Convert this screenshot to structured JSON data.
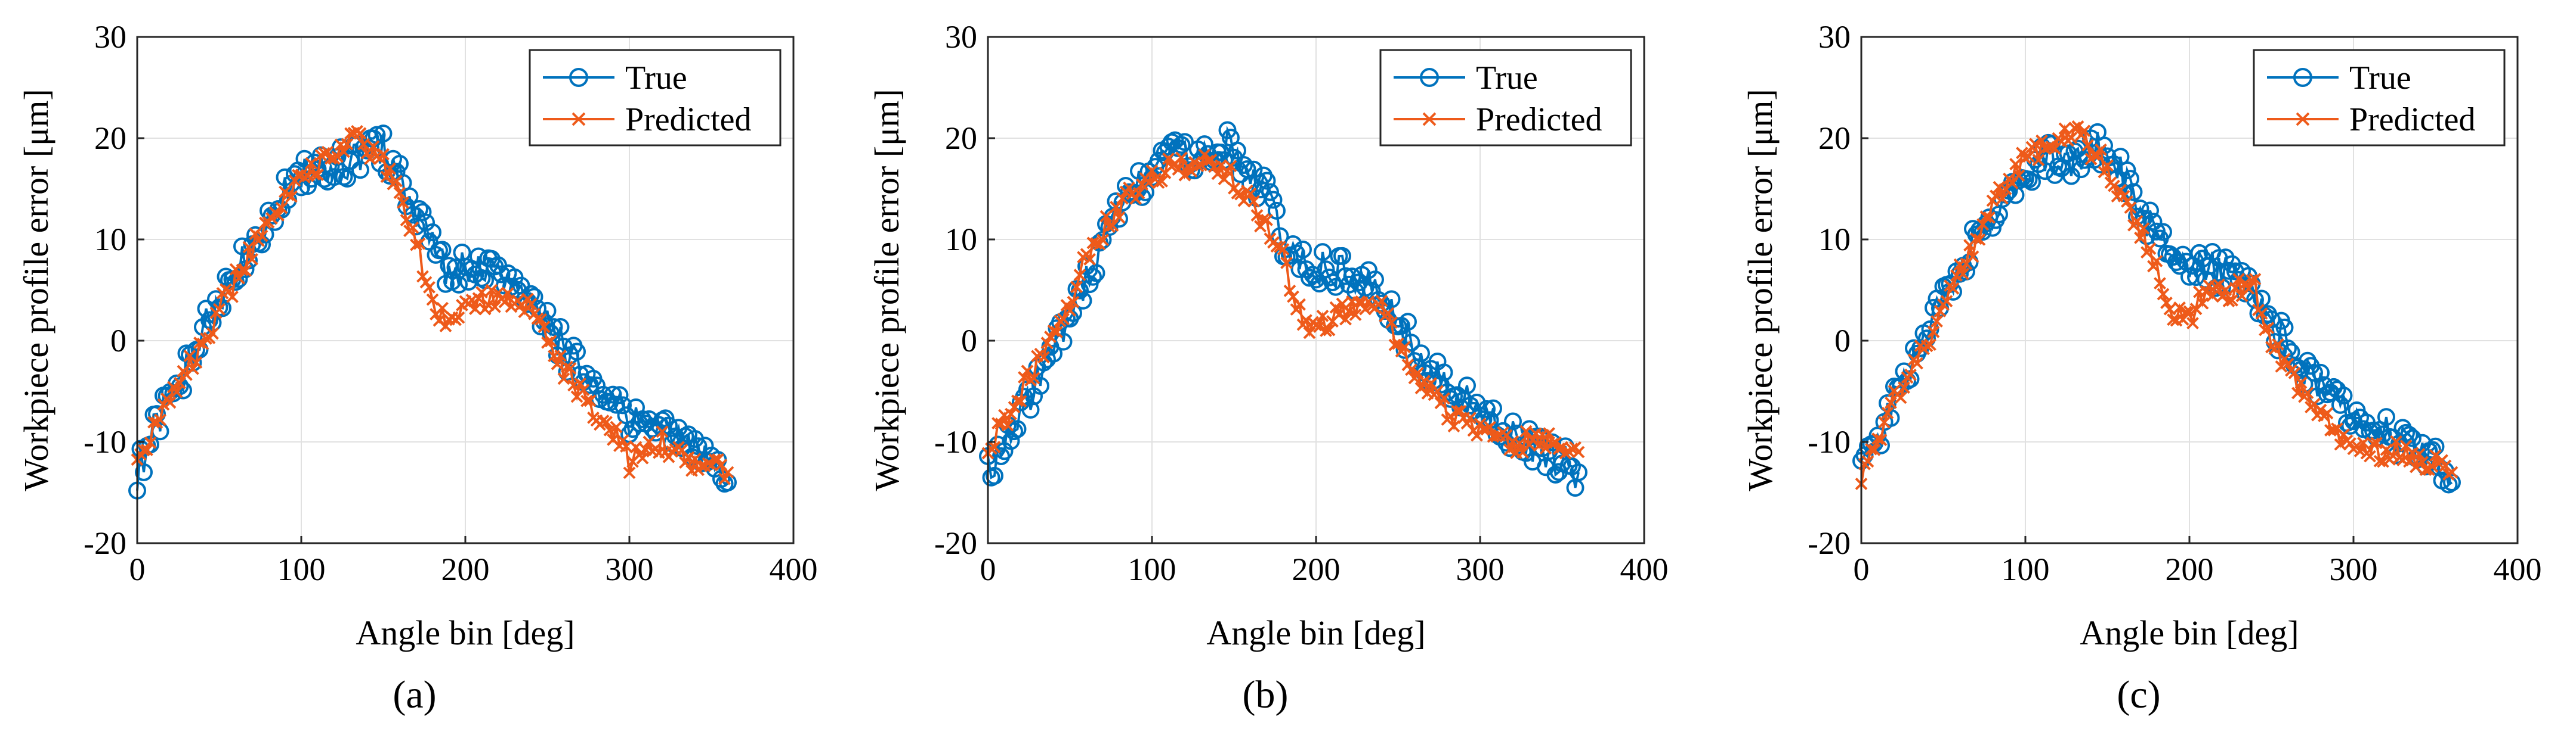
{
  "figure": {
    "colors": {
      "true_series": "#0072BD",
      "predicted_series": "#EE5A1A",
      "grid": "#e1e1e1",
      "axes": "#262626"
    },
    "panels": [
      {
        "caption": "(a)",
        "chart_data": {
          "type": "line",
          "title": "",
          "xlabel": "Angle bin [deg]",
          "ylabel": "Workpiece profile error [μm]",
          "xlim": [
            0,
            400
          ],
          "ylim": [
            -20,
            30
          ],
          "xticks": [
            0,
            100,
            200,
            300,
            400
          ],
          "yticks": [
            -20,
            -10,
            0,
            10,
            20,
            30
          ],
          "grid": true,
          "legend_position": "top-right",
          "x": [
            0,
            10,
            20,
            30,
            40,
            50,
            60,
            70,
            80,
            90,
            100,
            110,
            120,
            130,
            140,
            150,
            160,
            170,
            180,
            190,
            200,
            210,
            220,
            230,
            240,
            250,
            260,
            270,
            280,
            290,
            300,
            310,
            320,
            330,
            340,
            350,
            360
          ],
          "series": [
            {
              "name": "True",
              "marker": "circle",
              "values": [
                -13,
                -9,
                -6,
                -3,
                1,
                4,
                7,
                10,
                12,
                15,
                16,
                18,
                17,
                18,
                19,
                19,
                16,
                13,
                9,
                7,
                7,
                7,
                7,
                5,
                4,
                2,
                -1,
                -3,
                -4,
                -6,
                -8,
                -8,
                -9,
                -10,
                -11,
                -12,
                -14
              ]
            },
            {
              "name": "Predicted",
              "marker": "x",
              "values": [
                -12,
                -9,
                -6,
                -3,
                0,
                3,
                6,
                9,
                12,
                14,
                16,
                17,
                19,
                20,
                19,
                18,
                14,
                10,
                3,
                2,
                3,
                4,
                4,
                4,
                3,
                0,
                -3,
                -5,
                -7,
                -9,
                -12,
                -11,
                -10,
                -11,
                -12,
                -12,
                -13
              ]
            }
          ]
        }
      },
      {
        "caption": "(b)",
        "chart_data": {
          "type": "line",
          "title": "",
          "xlabel": "Angle bin [deg]",
          "ylabel": "Workpiece profile error [μm]",
          "xlim": [
            0,
            400
          ],
          "ylim": [
            -20,
            30
          ],
          "xticks": [
            0,
            100,
            200,
            300,
            400
          ],
          "yticks": [
            -20,
            -10,
            0,
            10,
            20,
            30
          ],
          "grid": true,
          "legend_position": "top-right",
          "x": [
            0,
            10,
            20,
            30,
            40,
            50,
            60,
            70,
            80,
            90,
            100,
            110,
            120,
            130,
            140,
            150,
            160,
            170,
            180,
            190,
            200,
            210,
            220,
            230,
            240,
            250,
            260,
            270,
            280,
            290,
            300,
            310,
            320,
            330,
            340,
            350,
            360
          ],
          "series": [
            {
              "name": "True",
              "marker": "circle",
              "values": [
                -13,
                -10,
                -7,
                -4,
                -1,
                3,
                6,
                10,
                13,
                15,
                16,
                18,
                18,
                19,
                19,
                19,
                17,
                14,
                10,
                8,
                7,
                7,
                7,
                6,
                4,
                2,
                -1,
                -3,
                -5,
                -6,
                -7,
                -8,
                -9,
                -10,
                -11,
                -12,
                -13
              ]
            },
            {
              "name": "Predicted",
              "marker": "x",
              "values": [
                -11,
                -8,
                -5,
                -2,
                1,
                4,
                8,
                11,
                13,
                15,
                16,
                17,
                17,
                18,
                17,
                16,
                14,
                11,
                8,
                3,
                1,
                2,
                3,
                3,
                3,
                0,
                -3,
                -5,
                -7,
                -8,
                -9,
                -9,
                -10,
                -10,
                -10,
                -10,
                -11
              ]
            }
          ]
        }
      },
      {
        "caption": "(c)",
        "chart_data": {
          "type": "line",
          "title": "",
          "xlabel": "Angle bin [deg]",
          "ylabel": "Workpiece profile error [μm]",
          "xlim": [
            0,
            400
          ],
          "ylim": [
            -20,
            30
          ],
          "xticks": [
            0,
            100,
            200,
            300,
            400
          ],
          "yticks": [
            -20,
            -10,
            0,
            10,
            20,
            30
          ],
          "grid": true,
          "legend_position": "top-right",
          "x": [
            0,
            10,
            20,
            30,
            40,
            50,
            60,
            70,
            80,
            90,
            100,
            110,
            120,
            130,
            140,
            150,
            160,
            170,
            180,
            190,
            200,
            210,
            220,
            230,
            240,
            250,
            260,
            270,
            280,
            290,
            300,
            310,
            320,
            330,
            340,
            350,
            360
          ],
          "series": [
            {
              "name": "True",
              "marker": "circle",
              "values": [
                -13,
                -10,
                -6,
                -3,
                1,
                4,
                7,
                10,
                12,
                15,
                16,
                18,
                18,
                18,
                19,
                19,
                16,
                13,
                10,
                8,
                7,
                7,
                7,
                6,
                4,
                2,
                -1,
                -3,
                -4,
                -6,
                -8,
                -8,
                -9,
                -10,
                -11,
                -12,
                -14
              ]
            },
            {
              "name": "Predicted",
              "marker": "x",
              "values": [
                -14,
                -10,
                -6,
                -3,
                0,
                3,
                7,
                10,
                13,
                16,
                18,
                19,
                20,
                21,
                19,
                17,
                14,
                11,
                7,
                3,
                2,
                5,
                5,
                5,
                5,
                0,
                -3,
                -5,
                -7,
                -9,
                -11,
                -11,
                -11,
                -11,
                -12,
                -12,
                -13
              ]
            }
          ]
        }
      }
    ]
  }
}
